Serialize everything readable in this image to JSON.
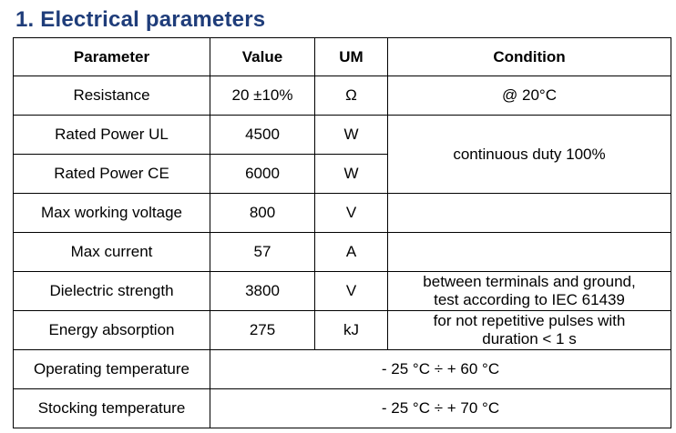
{
  "title": "1. Electrical parameters",
  "table": {
    "header": [
      "Parameter",
      "Value",
      "UM",
      "Condition"
    ],
    "rows": [
      [
        "Resistance",
        "20 ±10%",
        "Ω",
        "@ 20°C"
      ],
      [
        "Rated Power UL",
        "4500",
        "W",
        "continuous duty 100%"
      ],
      [
        "Rated Power CE",
        "6000",
        "W"
      ],
      [
        "Max working voltage",
        "800",
        "V"
      ],
      [
        "Max current",
        "57",
        "A"
      ],
      [
        "Dielectric strength",
        "3800",
        "V",
        [
          "between terminals and ground,",
          "test according to IEC 61439"
        ]
      ],
      [
        "Energy absorption",
        "275",
        "kJ",
        [
          "for not repetitive pulses with",
          "duration < 1 s"
        ]
      ],
      [
        "Operating temperature",
        "- 25 °C ÷ + 60 °C"
      ],
      [
        "Stocking temperature",
        "- 25 °C ÷ + 70 °C"
      ]
    ]
  }
}
